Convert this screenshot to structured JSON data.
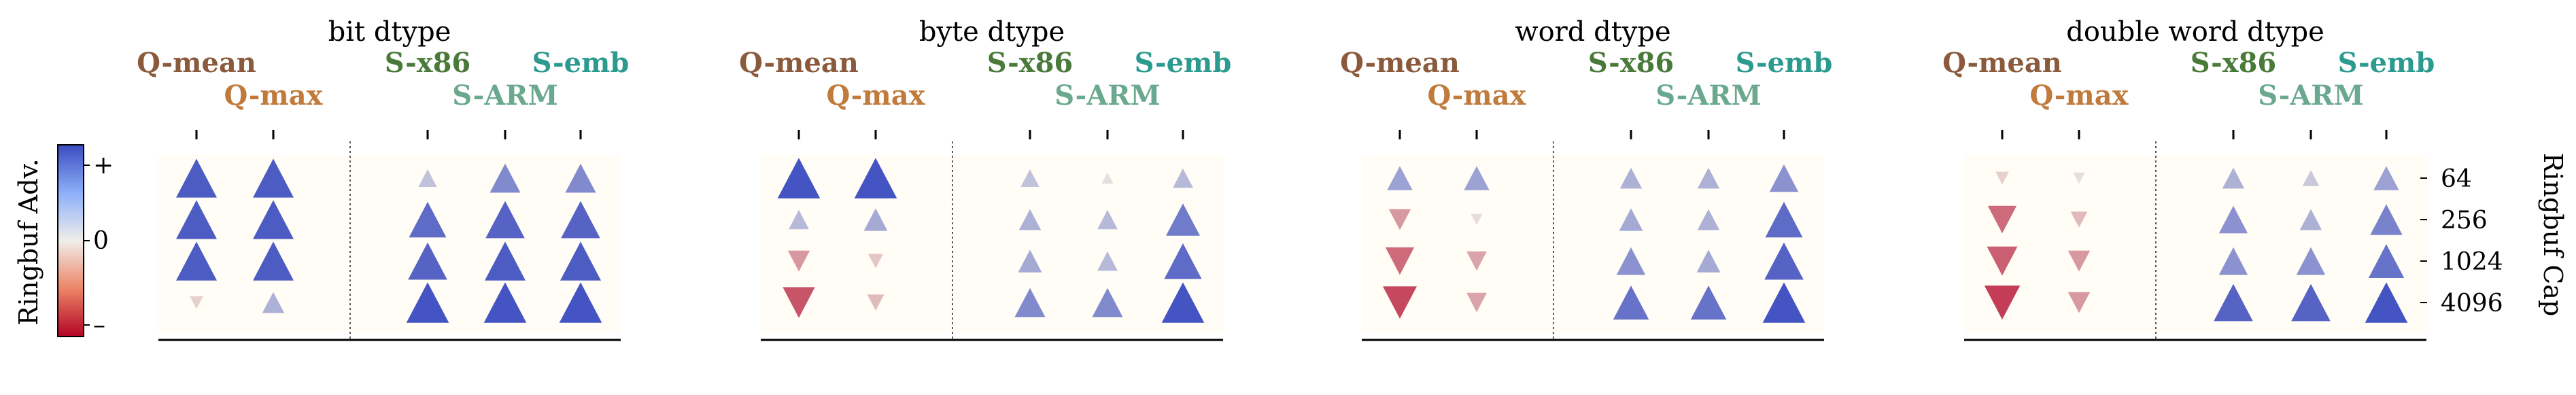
{
  "figure": {
    "colorbar": {
      "label": "Ringbuf Adv.",
      "tick_plus": "+",
      "tick_zero": "0",
      "tick_minus": "–"
    },
    "right_axis": {
      "label": "Ringbuf Cap",
      "ticks": [
        "64",
        "256",
        "1024",
        "4096"
      ]
    },
    "method_colors": {
      "Q-mean": "#8b5a3c",
      "Q-max": "#c07a3c",
      "S-x86": "#4a7a3a",
      "S-ARM": "#6aa88f",
      "S-emb": "#2b9a8f"
    }
  },
  "chart_data": [
    {
      "type": "scatter",
      "title": "bit dtype",
      "methods": [
        "Q-mean",
        "Q-max",
        "S-x86",
        "S-ARM",
        "S-emb"
      ],
      "caps": [
        "64",
        "256",
        "1024",
        "4096"
      ],
      "values": [
        [
          0.9,
          0.9,
          0.25,
          0.6,
          0.6
        ],
        [
          0.9,
          0.9,
          0.8,
          0.85,
          0.85
        ],
        [
          0.9,
          0.9,
          0.85,
          0.9,
          0.9
        ],
        [
          -0.1,
          0.35,
          0.95,
          0.95,
          0.95
        ]
      ]
    },
    {
      "type": "scatter",
      "title": "byte dtype",
      "methods": [
        "Q-mean",
        "Q-max",
        "S-x86",
        "S-ARM",
        "S-emb"
      ],
      "caps": [
        "64",
        "256",
        "1024",
        "4096"
      ],
      "values": [
        [
          0.95,
          0.95,
          0.25,
          0.05,
          0.3
        ],
        [
          0.3,
          0.4,
          0.35,
          0.3,
          0.7
        ],
        [
          -0.35,
          -0.15,
          0.4,
          0.3,
          0.8
        ],
        [
          -0.65,
          -0.2,
          0.6,
          0.6,
          0.95
        ]
      ]
    },
    {
      "type": "scatter",
      "title": "word dtype",
      "methods": [
        "Q-mean",
        "Q-max",
        "S-x86",
        "S-ARM",
        "S-emb"
      ],
      "caps": [
        "64",
        "256",
        "1024",
        "4096"
      ],
      "values": [
        [
          0.45,
          0.45,
          0.35,
          0.35,
          0.55
        ],
        [
          -0.35,
          -0.05,
          0.4,
          0.35,
          0.8
        ],
        [
          -0.55,
          -0.3,
          0.55,
          0.4,
          0.85
        ],
        [
          -0.7,
          -0.3,
          0.75,
          0.75,
          0.95
        ]
      ]
    },
    {
      "type": "scatter",
      "title": "double word dtype",
      "methods": [
        "Q-mean",
        "Q-max",
        "S-x86",
        "S-ARM",
        "S-emb"
      ],
      "caps": [
        "64",
        "256",
        "1024",
        "4096"
      ],
      "values": [
        [
          -0.1,
          -0.05,
          0.35,
          0.2,
          0.45
        ],
        [
          -0.55,
          -0.2,
          0.55,
          0.35,
          0.65
        ],
        [
          -0.6,
          -0.35,
          0.55,
          0.55,
          0.75
        ],
        [
          -0.75,
          -0.35,
          0.85,
          0.85,
          0.95
        ]
      ]
    }
  ]
}
